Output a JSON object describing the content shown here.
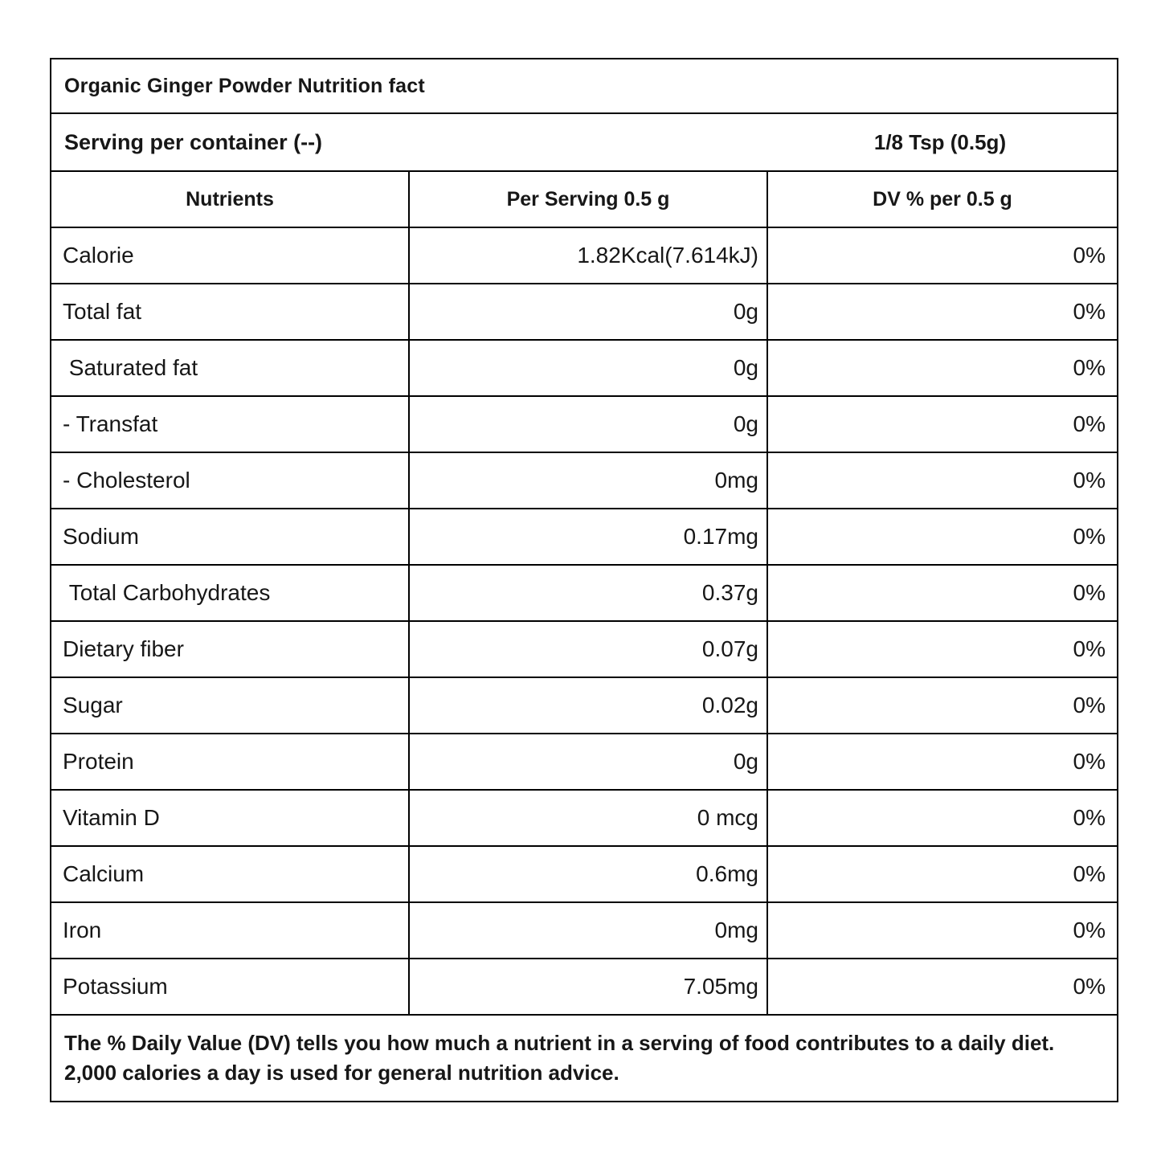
{
  "page": {
    "background": "#ffffff",
    "text_color": "#171717",
    "border_color": "#000000"
  },
  "title": "Organic Ginger Powder Nutrition fact",
  "serving": {
    "label": "Serving per container (--)",
    "size": "1/8 Tsp (0.5g)"
  },
  "columns": {
    "nutrients": "Nutrients",
    "per_serving": "Per Serving 0.5 g",
    "dv": "DV % per 0.5 g"
  },
  "rows": [
    {
      "nutrient": "Calorie",
      "per_serving": "1.82Kcal(7.614kJ)",
      "dv": "0%"
    },
    {
      "nutrient": "Total fat",
      "per_serving": "0g",
      "dv": "0%"
    },
    {
      "nutrient": " Saturated fat",
      "per_serving": "0g",
      "dv": "0%"
    },
    {
      "nutrient": "- Transfat",
      "per_serving": "0g",
      "dv": "0%"
    },
    {
      "nutrient": "- Cholesterol",
      "per_serving": "0mg",
      "dv": "0%"
    },
    {
      "nutrient": "Sodium",
      "per_serving": "0.17mg",
      "dv": "0%"
    },
    {
      "nutrient": " Total Carbohydrates",
      "per_serving": "0.37g",
      "dv": "0%"
    },
    {
      "nutrient": "Dietary fiber",
      "per_serving": "0.07g",
      "dv": "0%"
    },
    {
      "nutrient": "Sugar",
      "per_serving": "0.02g",
      "dv": "0%"
    },
    {
      "nutrient": "Protein",
      "per_serving": "0g",
      "dv": "0%"
    },
    {
      "nutrient": "Vitamin D",
      "per_serving": "0 mcg",
      "dv": "0%"
    },
    {
      "nutrient": "Calcium",
      "per_serving": "0.6mg",
      "dv": "0%"
    },
    {
      "nutrient": "Iron",
      "per_serving": "0mg",
      "dv": "0%"
    },
    {
      "nutrient": "Potassium",
      "per_serving": "7.05mg",
      "dv": "0%"
    }
  ],
  "footnote": "The % Daily Value (DV) tells you how much a nutrient in a serving of food contributes to a daily diet. 2,000 calories a day is used for general nutrition advice."
}
